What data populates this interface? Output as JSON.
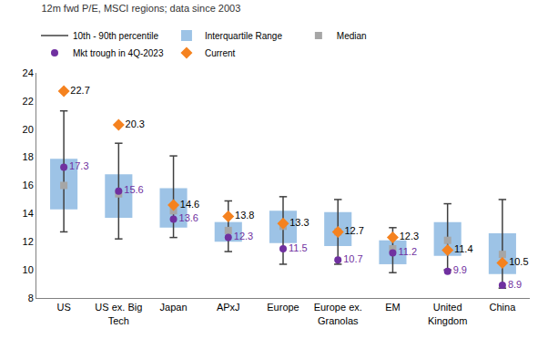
{
  "chart_data": {
    "type": "box",
    "title": "12m fwd P/E, MSCI regions; data since 2003",
    "categories": [
      "US",
      "US ex. Big Tech",
      "Japan",
      "APxJ",
      "Europe",
      "Europe ex. Granolas",
      "EM",
      "United Kingdom",
      "China"
    ],
    "series": [
      {
        "name": "10th - 90th percentile",
        "color": "#404040",
        "low": [
          12.7,
          12.2,
          12.3,
          11.3,
          10.4,
          10.4,
          9.8,
          10.0,
          8.7
        ],
        "high": [
          21.3,
          19.0,
          18.1,
          14.9,
          15.2,
          15.0,
          13.0,
          14.7,
          15.0
        ]
      },
      {
        "name": "Interquartile Range",
        "color": "#9dc3e6",
        "low": [
          14.3,
          13.7,
          13.0,
          12.0,
          11.9,
          11.7,
          10.4,
          11.0,
          9.7
        ],
        "high": [
          17.9,
          16.8,
          15.8,
          13.4,
          14.2,
          14.1,
          12.1,
          13.4,
          12.6
        ]
      },
      {
        "name": "Median",
        "color": "#a6a6a6",
        "marker": "square",
        "values": [
          16.0,
          15.4,
          14.2,
          12.8,
          13.1,
          12.7,
          11.5,
          12.1,
          11.1
        ]
      },
      {
        "name": "Mkt trough in 4Q-2023",
        "color": "#7030a0",
        "marker": "circle",
        "data_labels": true,
        "values": [
          17.3,
          15.6,
          13.6,
          12.3,
          11.5,
          10.7,
          11.2,
          9.9,
          8.9
        ]
      },
      {
        "name": "Current",
        "color": "#f5821f",
        "marker": "diamond",
        "data_labels": true,
        "values": [
          22.7,
          20.3,
          14.6,
          13.8,
          13.3,
          12.7,
          12.3,
          11.4,
          10.5
        ]
      }
    ],
    "ylim": [
      8,
      24
    ],
    "yticks": [
      8,
      10,
      12,
      14,
      16,
      18,
      20,
      22,
      24
    ],
    "grid": false,
    "legend": "top"
  }
}
